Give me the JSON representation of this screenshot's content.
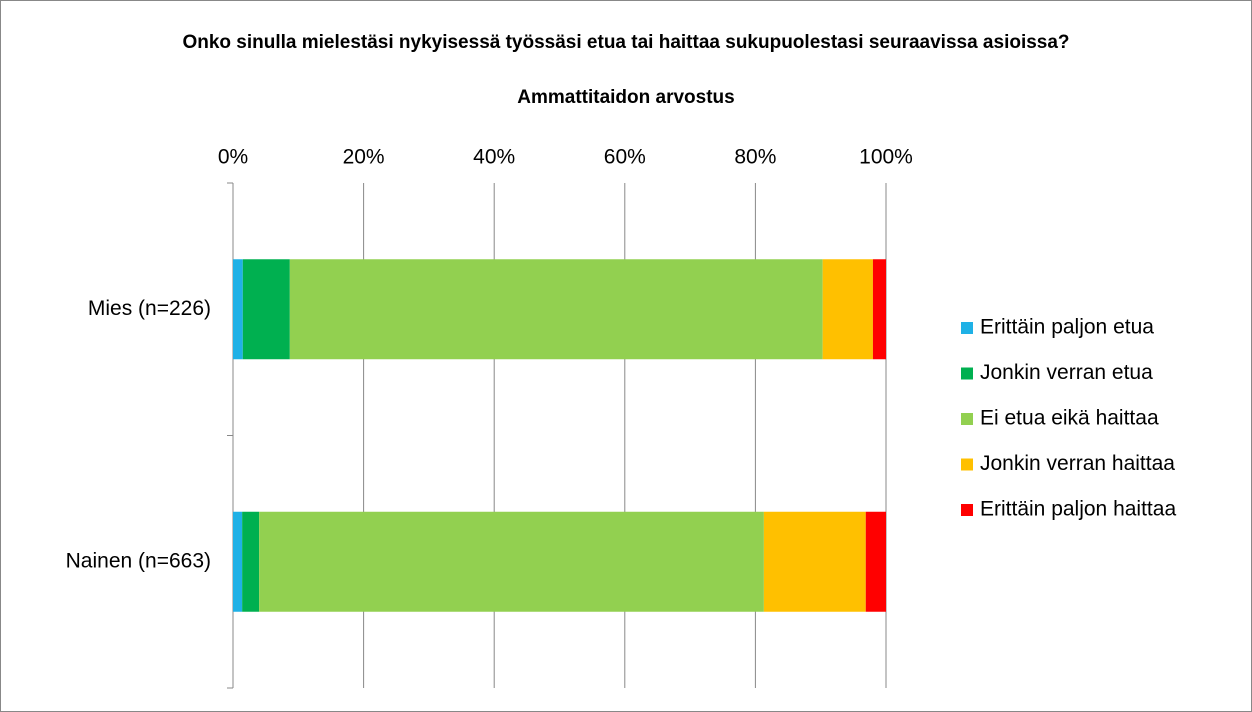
{
  "chart_data": {
    "type": "stacked-bar-horizontal",
    "title": "Onko sinulla mielestäsi nykyisessä työssäsi etua tai haittaa sukupuolestasi seuraavissa asioissa?",
    "subtitle": "Ammattitaidon arvostus",
    "categories": [
      "Mies (n=226)",
      "Nainen (n=663)"
    ],
    "series": [
      {
        "name": "Erittäin paljon etua",
        "color": "#1fb1e6",
        "values": [
          1.5,
          1.4
        ]
      },
      {
        "name": "Jonkin verran etua",
        "color": "#00b050",
        "values": [
          7.2,
          2.6
        ]
      },
      {
        "name": "Ei etua eikä haittaa",
        "color": "#92d050",
        "values": [
          81.6,
          77.3
        ]
      },
      {
        "name": "Jonkin verran haittaa",
        "color": "#ffc000",
        "values": [
          7.7,
          15.6
        ]
      },
      {
        "name": "Erittäin paljon haittaa",
        "color": "#ff0000",
        "values": [
          2.0,
          3.1
        ]
      }
    ],
    "xlim": [
      0,
      100
    ],
    "xticks": [
      {
        "value": 0,
        "label": "0%"
      },
      {
        "value": 20,
        "label": "20%"
      },
      {
        "value": 40,
        "label": "40%"
      },
      {
        "value": 60,
        "label": "60%"
      },
      {
        "value": 80,
        "label": "80%"
      },
      {
        "value": 100,
        "label": "100%"
      }
    ],
    "grid": true,
    "legend": "right"
  }
}
